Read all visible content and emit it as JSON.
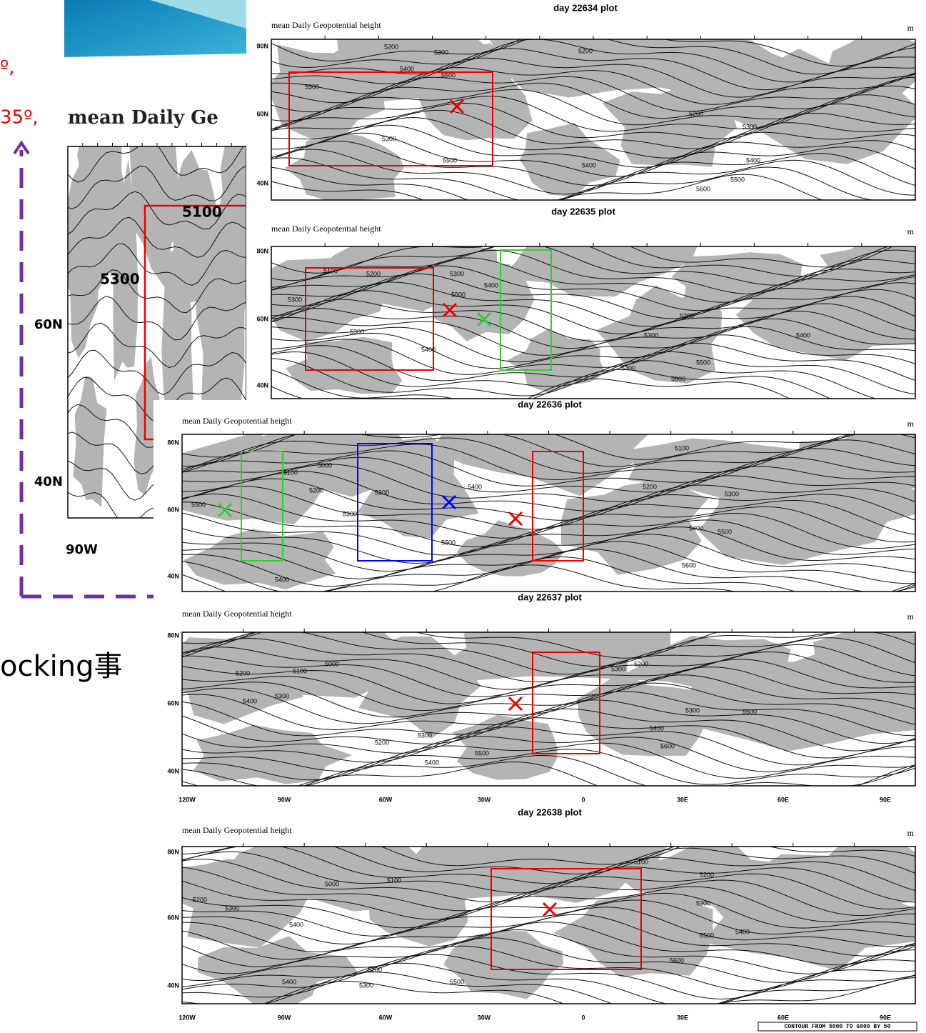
{
  "background": {
    "top_note": "º,",
    "second_note": "35º,",
    "zoom_title": "mean Daily Ge",
    "zoom_contours": [
      "5100",
      "5300"
    ],
    "zoom_lat": [
      "60N",
      "40N"
    ],
    "zoom_lon": "90W",
    "bottom_text": "ocking事"
  },
  "panels": [
    {
      "title": "day 22634 plot",
      "subtitle": "mean Daily Geopotential height",
      "unit": "m",
      "lat_labels": [
        "80N",
        "60N",
        "40N"
      ],
      "contour_labels": [
        "5200",
        "5300",
        "5400",
        "5500",
        "5300",
        "5300",
        "5500",
        "5200",
        "5200",
        "5300",
        "5400",
        "5400",
        "5500",
        "5600"
      ]
    },
    {
      "title": "day 22635 plot",
      "subtitle": "mean Daily Geopotential height",
      "unit": "m",
      "lat_labels": [
        "80N",
        "60N",
        "40N"
      ],
      "contour_labels": [
        "5100",
        "5200",
        "5300",
        "5300",
        "5400",
        "5500",
        "5300",
        "5400",
        "5200",
        "5300",
        "5400",
        "5500",
        "5600",
        "5400"
      ]
    },
    {
      "title": "day 22636 plot",
      "subtitle": "mean Daily Geopotential height",
      "unit": "m",
      "lat_labels": [
        "80N",
        "60N",
        "40N"
      ],
      "contour_labels": [
        "5500",
        "5000",
        "5100",
        "5200",
        "5300",
        "5300",
        "5400",
        "5400",
        "5500",
        "5100",
        "5200",
        "5300",
        "5400",
        "5500",
        "5600"
      ]
    },
    {
      "title": "day 22637 plot",
      "subtitle": "mean Daily Geopotential height",
      "unit": "m",
      "lat_labels": [
        "80N",
        "60N",
        "40N"
      ],
      "contour_labels": [
        "5000",
        "5100",
        "5200",
        "5300",
        "5400",
        "5200",
        "5300",
        "5500",
        "5400",
        "5300",
        "5200",
        "5300",
        "5400",
        "5500",
        "5600"
      ],
      "lon_labels": [
        "120W",
        "90W",
        "60W",
        "30W",
        "0",
        "30E",
        "60E",
        "90E"
      ]
    },
    {
      "title": "day 22638 plot",
      "subtitle": "mean Daily Geopotential height",
      "unit": "m",
      "lat_labels": [
        "80N",
        "60N",
        "40N"
      ],
      "contour_labels": [
        "5200",
        "5300",
        "5000",
        "5100",
        "5400",
        "5200",
        "5300",
        "5500",
        "5400",
        "5100",
        "5200",
        "5300",
        "5500",
        "5400",
        "5600"
      ],
      "lon_labels": [
        "120W",
        "90W",
        "60W",
        "30W",
        "0",
        "30E",
        "60E",
        "90E"
      ],
      "footnote": "CONTOUR FROM 5000 TO 6000 BY 50"
    }
  ]
}
